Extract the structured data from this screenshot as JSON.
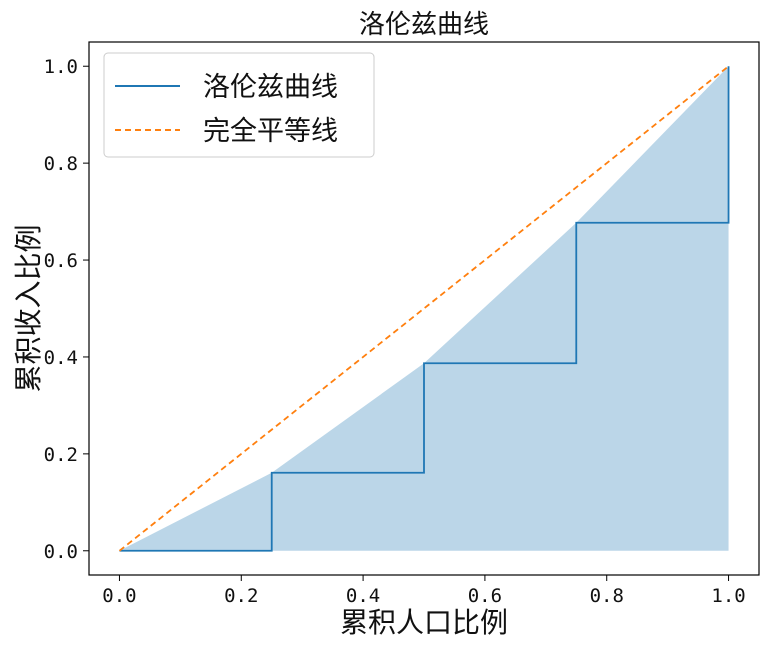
{
  "chart_data": {
    "type": "line",
    "title": "洛伦兹曲线",
    "xlabel": "累积人口比例",
    "ylabel": "累积收入比例",
    "xlim": [
      -0.05,
      1.05
    ],
    "ylim": [
      -0.05,
      1.05
    ],
    "xticks": [
      0.0,
      0.2,
      0.4,
      0.6,
      0.8,
      1.0
    ],
    "yticks": [
      0.0,
      0.2,
      0.4,
      0.6,
      0.8,
      1.0
    ],
    "xtick_labels": [
      "0.0",
      "0.2",
      "0.4",
      "0.6",
      "0.8",
      "1.0"
    ],
    "ytick_labels": [
      "0.0",
      "0.2",
      "0.4",
      "0.6",
      "0.8",
      "1.0"
    ],
    "grid": false,
    "legend_position": "upper-left",
    "series": [
      {
        "name": "洛伦兹曲线",
        "style": "solid-step",
        "color": "#1f77b4",
        "x": [
          0.0,
          0.25,
          0.25,
          0.5,
          0.5,
          0.75,
          0.75,
          1.0,
          1.0
        ],
        "y": [
          0.0,
          0.0,
          0.161,
          0.161,
          0.387,
          0.387,
          0.677,
          0.677,
          1.0
        ]
      },
      {
        "name": "完全平等线",
        "style": "dashed",
        "color": "#ff7f0e",
        "x": [
          0.0,
          1.0
        ],
        "y": [
          0.0,
          1.0
        ]
      }
    ],
    "fill": {
      "color": "#1f77b4",
      "opacity": 0.3,
      "x": [
        0.0,
        0.25,
        0.5,
        0.75,
        1.0
      ],
      "y": [
        0.0,
        0.161,
        0.387,
        0.677,
        1.0
      ]
    }
  }
}
